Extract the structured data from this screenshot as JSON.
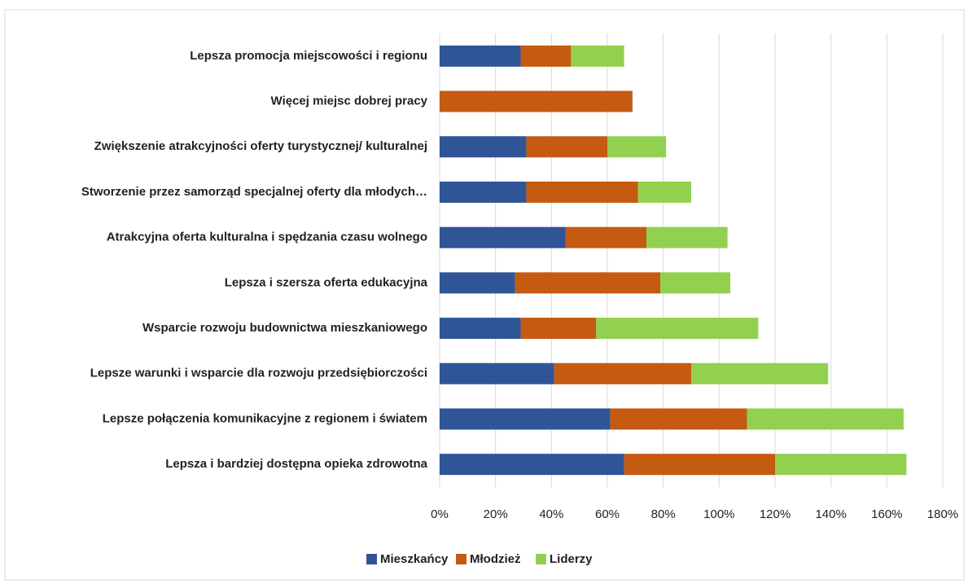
{
  "chart_data": {
    "type": "stacked-barh",
    "categories": [
      "Lepsza promocja miejscowości i regionu",
      "Więcej miejsc dobrej pracy",
      "Zwiększenie atrakcyjności oferty turystycznej/ kulturalnej",
      "Stworzenie przez samorząd specjalnej oferty dla młodych…",
      "Atrakcyjna oferta kulturalna i spędzania czasu wolnego",
      "Lepsza i szersza oferta edukacyjna",
      "Wsparcie rozwoju budownictwa mieszkaniowego",
      "Lepsze warunki i wsparcie dla rozwoju przedsiębiorczości",
      "Lepsze połączenia komunikacyjne z regionem i światem",
      "Lepsza i bardziej dostępna opieka zdrowotna"
    ],
    "series": [
      {
        "name": "Mieszkańcy",
        "color": "#2f5597",
        "values": [
          29,
          0,
          31,
          31,
          45,
          27,
          29,
          41,
          61,
          66
        ]
      },
      {
        "name": "Młodzież",
        "color": "#c55a11",
        "values": [
          18,
          69,
          29,
          40,
          29,
          52,
          27,
          49,
          49,
          54
        ]
      },
      {
        "name": "Liderzy",
        "color": "#92d050",
        "values": [
          19,
          0,
          21,
          19,
          29,
          25,
          58,
          49,
          56,
          47
        ]
      }
    ],
    "xlim": [
      0,
      180
    ],
    "xticks": [
      {
        "value": 0,
        "label": "0%"
      },
      {
        "value": 20,
        "label": "20%"
      },
      {
        "value": 40,
        "label": "40%"
      },
      {
        "value": 60,
        "label": "60%"
      },
      {
        "value": 80,
        "label": "80%"
      },
      {
        "value": 100,
        "label": "100%"
      },
      {
        "value": 120,
        "label": "120%"
      },
      {
        "value": 140,
        "label": "140%"
      },
      {
        "value": 160,
        "label": "160%"
      },
      {
        "value": 180,
        "label": "180%"
      }
    ],
    "grid": true,
    "legend": "bottom"
  }
}
